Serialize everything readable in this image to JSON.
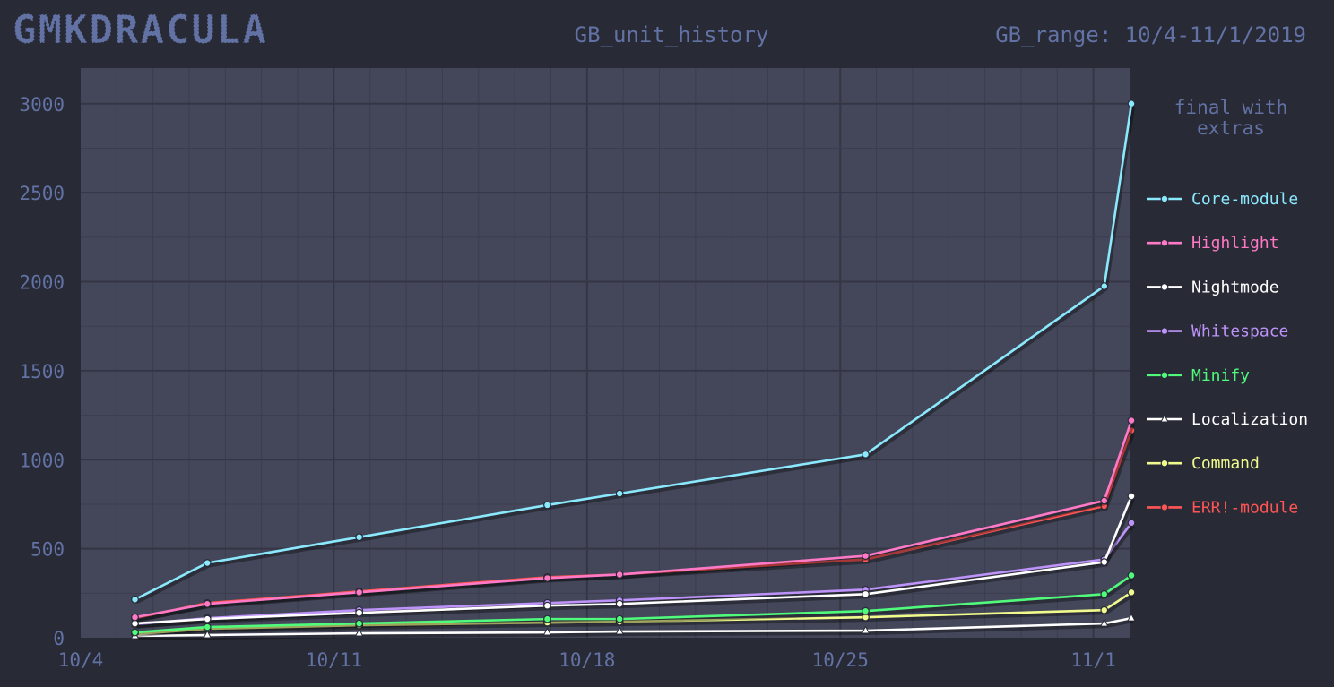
{
  "header": {
    "logo": "GMKDRACULA",
    "title": "GB_unit_history",
    "range": "GB_range: 10/4-11/1/2019"
  },
  "legend": {
    "title_line1": "final with",
    "title_line2": "extras"
  },
  "colors": {
    "background": "#282a36",
    "plot_bg": "#44475a",
    "grid": "#383a4a",
    "text": "#6272a4"
  },
  "chart_data": {
    "type": "line",
    "title": "GB_unit_history",
    "x_tick_labels": [
      "10/4",
      "10/11",
      "10/18",
      "10/25",
      "11/1"
    ],
    "x_tick_days": [
      0,
      7,
      14,
      21,
      28
    ],
    "xlim_days": [
      0,
      29
    ],
    "ylim": [
      0,
      3200
    ],
    "y_ticks": [
      0,
      500,
      1000,
      1500,
      2000,
      2500,
      3000
    ],
    "x": [
      1.5,
      3.5,
      7.7,
      12.9,
      14.9,
      21.7,
      28.3,
      29.05
    ],
    "series": [
      {
        "name": "Core-module",
        "color": "#8be9fd",
        "marker": "circle",
        "values": [
          215,
          420,
          565,
          745,
          810,
          1030,
          1975,
          3000
        ]
      },
      {
        "name": "Highlight",
        "color": "#ff79c6",
        "marker": "circle",
        "values": [
          115,
          190,
          255,
          335,
          355,
          460,
          770,
          1220
        ]
      },
      {
        "name": "Nightmode",
        "color": "#ffffff",
        "marker": "circle",
        "values": [
          80,
          105,
          140,
          180,
          190,
          245,
          425,
          795
        ]
      },
      {
        "name": "Whitespace",
        "color": "#bd93f9",
        "marker": "circle",
        "values": [
          75,
          110,
          155,
          195,
          210,
          270,
          440,
          645
        ]
      },
      {
        "name": "Minify",
        "color": "#50fa7b",
        "marker": "circle",
        "values": [
          30,
          60,
          80,
          105,
          105,
          150,
          245,
          350
        ]
      },
      {
        "name": "Localization",
        "color": "#ffffff",
        "marker": "triangle",
        "values": [
          10,
          15,
          25,
          30,
          35,
          40,
          80,
          110
        ]
      },
      {
        "name": "Command",
        "color": "#f1fa8c",
        "marker": "circle",
        "values": [
          20,
          50,
          70,
          85,
          90,
          115,
          155,
          255
        ]
      },
      {
        "name": "ERR!-module",
        "color": "#ff5555",
        "marker": "circle",
        "values": [
          110,
          195,
          260,
          340,
          355,
          440,
          740,
          1165
        ]
      }
    ]
  }
}
